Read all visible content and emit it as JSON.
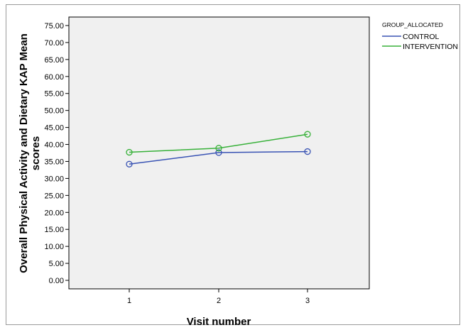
{
  "chart_data": {
    "type": "line",
    "x": [
      1,
      2,
      3
    ],
    "xticks": [
      "1",
      "2",
      "3"
    ],
    "xlabel": "Visit number",
    "ylabel_lines": [
      "Overall Physical Activity and Dietary KAP Mean",
      "scores"
    ],
    "ylim": [
      -2.5,
      77.5
    ],
    "yticks": [
      "0.00",
      "5.00",
      "10.00",
      "15.00",
      "20.00",
      "25.00",
      "30.00",
      "35.00",
      "40.00",
      "45.00",
      "50.00",
      "55.00",
      "60.00",
      "65.00",
      "70.00",
      "75.00"
    ],
    "legend_title": "GROUP_ALLOCATED",
    "legend_position": "top-right, outside plot",
    "grid": false,
    "plot_background": "#f0f0f0",
    "series": [
      {
        "name": "CONTROL",
        "color": "#3a54b4",
        "values": [
          34.2,
          37.6,
          37.9
        ]
      },
      {
        "name": "INTERVENTION",
        "color": "#38b13a",
        "values": [
          37.7,
          38.9,
          43.0
        ]
      }
    ]
  }
}
